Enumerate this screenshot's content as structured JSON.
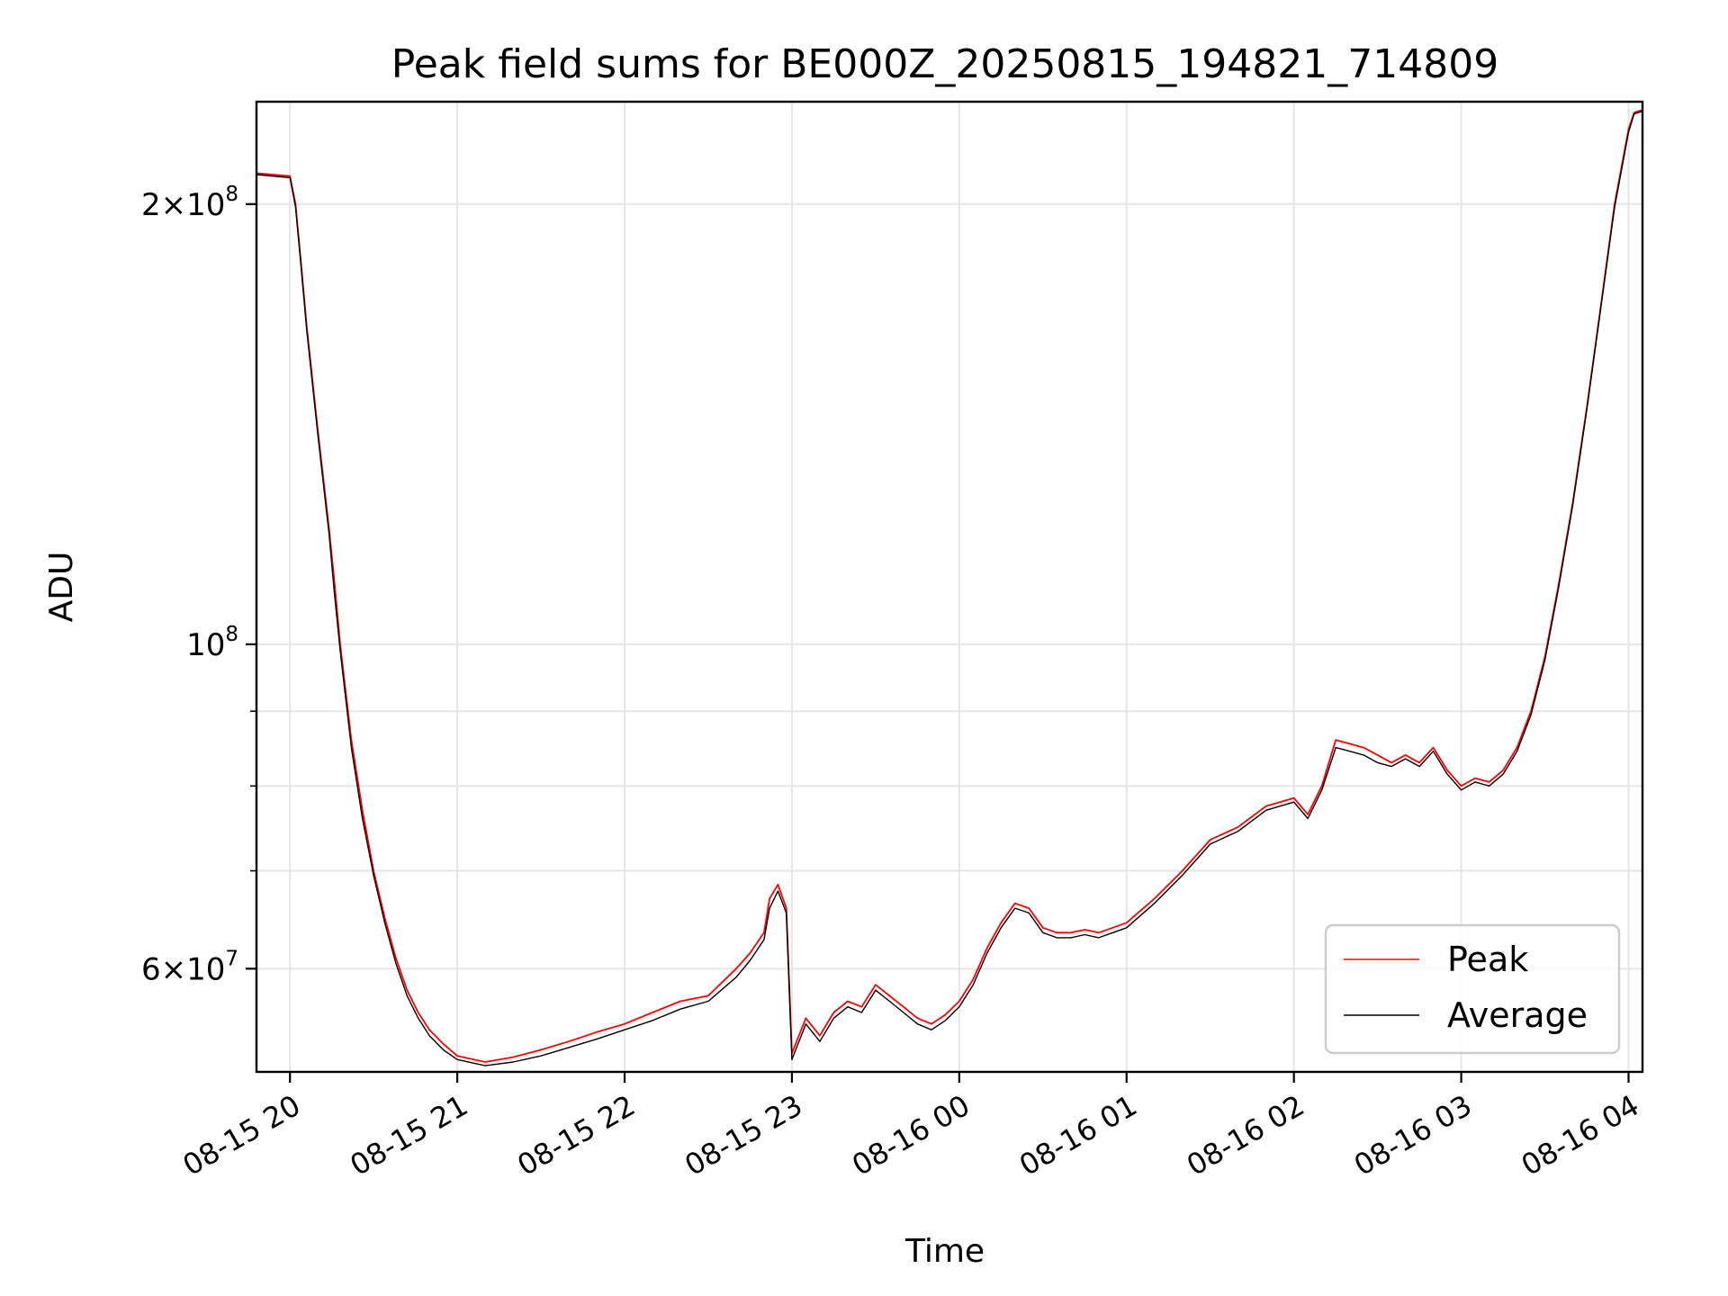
{
  "chart_data": {
    "type": "line",
    "title": "Peak field sums for BE000Z_20250815_194821_714809",
    "xlabel": "Time",
    "ylabel": "ADU",
    "yscale": "log",
    "grid": true,
    "legend_position": "lower-right",
    "x_range": [
      "2025-08-15 19:48",
      "2025-08-16 04:05"
    ],
    "y_range": [
      51000000,
      235000000
    ],
    "x_ticks": [
      {
        "value": "2025-08-15 20:00",
        "label": "08-15 20"
      },
      {
        "value": "2025-08-15 21:00",
        "label": "08-15 21"
      },
      {
        "value": "2025-08-15 22:00",
        "label": "08-15 22"
      },
      {
        "value": "2025-08-15 23:00",
        "label": "08-15 23"
      },
      {
        "value": "2025-08-16 00:00",
        "label": "08-16 00"
      },
      {
        "value": "2025-08-16 01:00",
        "label": "08-16 01"
      },
      {
        "value": "2025-08-16 02:00",
        "label": "08-16 02"
      },
      {
        "value": "2025-08-16 03:00",
        "label": "08-16 03"
      },
      {
        "value": "2025-08-16 04:00",
        "label": "08-16 04"
      }
    ],
    "y_major_ticks": [
      {
        "value": 200000000,
        "mantissa": "2",
        "exponent": "8"
      },
      {
        "value": 100000000,
        "mantissa": "",
        "exponent": "8"
      },
      {
        "value": 60000000,
        "mantissa": "6",
        "exponent": "7"
      }
    ],
    "y_minor_ticks": [
      90000000,
      80000000,
      70000000
    ],
    "series": [
      {
        "name": "Peak",
        "color": "#ff0000",
        "x": [
          "2025-08-15 19:48",
          "2025-08-15 20:00",
          "2025-08-15 20:02",
          "2025-08-15 20:04",
          "2025-08-15 20:06",
          "2025-08-15 20:10",
          "2025-08-15 20:14",
          "2025-08-15 20:16",
          "2025-08-15 20:18",
          "2025-08-15 20:22",
          "2025-08-15 20:26",
          "2025-08-15 20:30",
          "2025-08-15 20:34",
          "2025-08-15 20:38",
          "2025-08-15 20:42",
          "2025-08-15 20:46",
          "2025-08-15 20:50",
          "2025-08-15 20:55",
          "2025-08-15 21:00",
          "2025-08-15 21:10",
          "2025-08-15 21:20",
          "2025-08-15 21:30",
          "2025-08-15 21:40",
          "2025-08-15 21:50",
          "2025-08-15 22:00",
          "2025-08-15 22:10",
          "2025-08-15 22:20",
          "2025-08-15 22:30",
          "2025-08-15 22:40",
          "2025-08-15 22:45",
          "2025-08-15 22:50",
          "2025-08-15 22:52",
          "2025-08-15 22:55",
          "2025-08-15 22:58",
          "2025-08-15 23:00",
          "2025-08-15 23:05",
          "2025-08-15 23:10",
          "2025-08-15 23:15",
          "2025-08-15 23:20",
          "2025-08-15 23:25",
          "2025-08-15 23:30",
          "2025-08-15 23:35",
          "2025-08-15 23:40",
          "2025-08-15 23:45",
          "2025-08-15 23:50",
          "2025-08-15 23:55",
          "2025-08-16 00:00",
          "2025-08-16 00:05",
          "2025-08-16 00:10",
          "2025-08-16 00:15",
          "2025-08-16 00:20",
          "2025-08-16 00:25",
          "2025-08-16 00:30",
          "2025-08-16 00:35",
          "2025-08-16 00:40",
          "2025-08-16 00:45",
          "2025-08-16 00:50",
          "2025-08-16 00:55",
          "2025-08-16 01:00",
          "2025-08-16 01:10",
          "2025-08-16 01:20",
          "2025-08-16 01:30",
          "2025-08-16 01:40",
          "2025-08-16 01:50",
          "2025-08-16 02:00",
          "2025-08-16 02:05",
          "2025-08-16 02:10",
          "2025-08-16 02:15",
          "2025-08-16 02:20",
          "2025-08-16 02:25",
          "2025-08-16 02:30",
          "2025-08-16 02:35",
          "2025-08-16 02:40",
          "2025-08-16 02:45",
          "2025-08-16 02:50",
          "2025-08-16 02:55",
          "2025-08-16 03:00",
          "2025-08-16 03:05",
          "2025-08-16 03:10",
          "2025-08-16 03:15",
          "2025-08-16 03:20",
          "2025-08-16 03:25",
          "2025-08-16 03:30",
          "2025-08-16 03:35",
          "2025-08-16 03:40",
          "2025-08-16 03:45",
          "2025-08-16 03:50",
          "2025-08-16 03:55",
          "2025-08-16 04:00",
          "2025-08-16 04:02",
          "2025-08-16 04:05"
        ],
        "values": [
          210000000,
          209000000,
          200000000,
          182000000,
          165000000,
          140000000,
          120000000,
          110000000,
          100000000,
          86000000,
          77000000,
          70000000,
          65000000,
          61000000,
          58000000,
          56000000,
          54500000,
          53300000,
          52300000,
          51800000,
          52200000,
          52800000,
          53500000,
          54300000,
          55000000,
          56000000,
          57000000,
          57500000,
          60000000,
          61500000,
          63500000,
          67000000,
          68500000,
          66000000,
          52500000,
          55500000,
          54000000,
          56000000,
          57000000,
          56500000,
          58500000,
          57500000,
          56500000,
          55500000,
          55000000,
          55800000,
          57000000,
          59000000,
          62000000,
          64500000,
          66500000,
          66000000,
          64000000,
          63500000,
          63500000,
          63800000,
          63500000,
          64000000,
          64500000,
          67000000,
          70000000,
          73500000,
          75000000,
          77500000,
          78500000,
          76500000,
          80000000,
          86000000,
          85500000,
          85000000,
          84000000,
          83000000,
          84000000,
          83000000,
          85000000,
          82000000,
          80000000,
          81000000,
          80500000,
          82000000,
          85000000,
          90000000,
          98000000,
          110000000,
          125000000,
          145000000,
          170000000,
          200000000,
          225000000,
          231000000,
          232000000
        ]
      },
      {
        "name": "Average",
        "color": "#000000",
        "x": [
          "2025-08-15 19:48",
          "2025-08-15 20:00",
          "2025-08-15 20:02",
          "2025-08-15 20:04",
          "2025-08-15 20:06",
          "2025-08-15 20:10",
          "2025-08-15 20:14",
          "2025-08-15 20:16",
          "2025-08-15 20:18",
          "2025-08-15 20:22",
          "2025-08-15 20:26",
          "2025-08-15 20:30",
          "2025-08-15 20:34",
          "2025-08-15 20:38",
          "2025-08-15 20:42",
          "2025-08-15 20:46",
          "2025-08-15 20:50",
          "2025-08-15 20:55",
          "2025-08-15 21:00",
          "2025-08-15 21:10",
          "2025-08-15 21:20",
          "2025-08-15 21:30",
          "2025-08-15 21:40",
          "2025-08-15 21:50",
          "2025-08-15 22:00",
          "2025-08-15 22:10",
          "2025-08-15 22:20",
          "2025-08-15 22:30",
          "2025-08-15 22:40",
          "2025-08-15 22:45",
          "2025-08-15 22:50",
          "2025-08-15 22:52",
          "2025-08-15 22:55",
          "2025-08-15 22:58",
          "2025-08-15 23:00",
          "2025-08-15 23:05",
          "2025-08-15 23:10",
          "2025-08-15 23:15",
          "2025-08-15 23:20",
          "2025-08-15 23:25",
          "2025-08-15 23:30",
          "2025-08-15 23:35",
          "2025-08-15 23:40",
          "2025-08-15 23:45",
          "2025-08-15 23:50",
          "2025-08-15 23:55",
          "2025-08-16 00:00",
          "2025-08-16 00:05",
          "2025-08-16 00:10",
          "2025-08-16 00:15",
          "2025-08-16 00:20",
          "2025-08-16 00:25",
          "2025-08-16 00:30",
          "2025-08-16 00:35",
          "2025-08-16 00:40",
          "2025-08-16 00:45",
          "2025-08-16 00:50",
          "2025-08-16 00:55",
          "2025-08-16 01:00",
          "2025-08-16 01:10",
          "2025-08-16 01:20",
          "2025-08-16 01:30",
          "2025-08-16 01:40",
          "2025-08-16 01:50",
          "2025-08-16 02:00",
          "2025-08-16 02:05",
          "2025-08-16 02:10",
          "2025-08-16 02:15",
          "2025-08-16 02:20",
          "2025-08-16 02:25",
          "2025-08-16 02:30",
          "2025-08-16 02:35",
          "2025-08-16 02:40",
          "2025-08-16 02:45",
          "2025-08-16 02:50",
          "2025-08-16 02:55",
          "2025-08-16 03:00",
          "2025-08-16 03:05",
          "2025-08-16 03:10",
          "2025-08-16 03:15",
          "2025-08-16 03:20",
          "2025-08-16 03:25",
          "2025-08-16 03:30",
          "2025-08-16 03:35",
          "2025-08-16 03:40",
          "2025-08-16 03:45",
          "2025-08-16 03:50",
          "2025-08-16 03:55",
          "2025-08-16 04:00",
          "2025-08-16 04:02",
          "2025-08-16 04:05"
        ],
        "values": [
          209500000,
          208500000,
          199000000,
          181000000,
          164000000,
          139000000,
          119000000,
          108000000,
          99000000,
          85000000,
          76000000,
          69500000,
          64500000,
          60500000,
          57500000,
          55500000,
          54000000,
          52800000,
          52000000,
          51500000,
          51800000,
          52300000,
          53000000,
          53700000,
          54500000,
          55300000,
          56300000,
          57000000,
          59200000,
          60800000,
          62800000,
          66000000,
          67800000,
          65500000,
          52000000,
          55000000,
          53500000,
          55500000,
          56500000,
          56000000,
          58000000,
          57000000,
          56000000,
          55000000,
          54500000,
          55300000,
          56500000,
          58500000,
          61500000,
          64000000,
          66000000,
          65500000,
          63500000,
          63000000,
          63000000,
          63300000,
          63000000,
          63500000,
          64000000,
          66500000,
          69500000,
          73000000,
          74500000,
          77000000,
          78000000,
          76000000,
          79500000,
          85000000,
          84500000,
          84000000,
          83000000,
          82500000,
          83500000,
          82500000,
          84500000,
          81500000,
          79500000,
          80500000,
          80000000,
          81500000,
          84500000,
          89500000,
          97500000,
          109500000,
          124500000,
          144500000,
          169500000,
          199000000,
          224000000,
          230500000,
          231500000
        ]
      }
    ],
    "annotations": []
  }
}
